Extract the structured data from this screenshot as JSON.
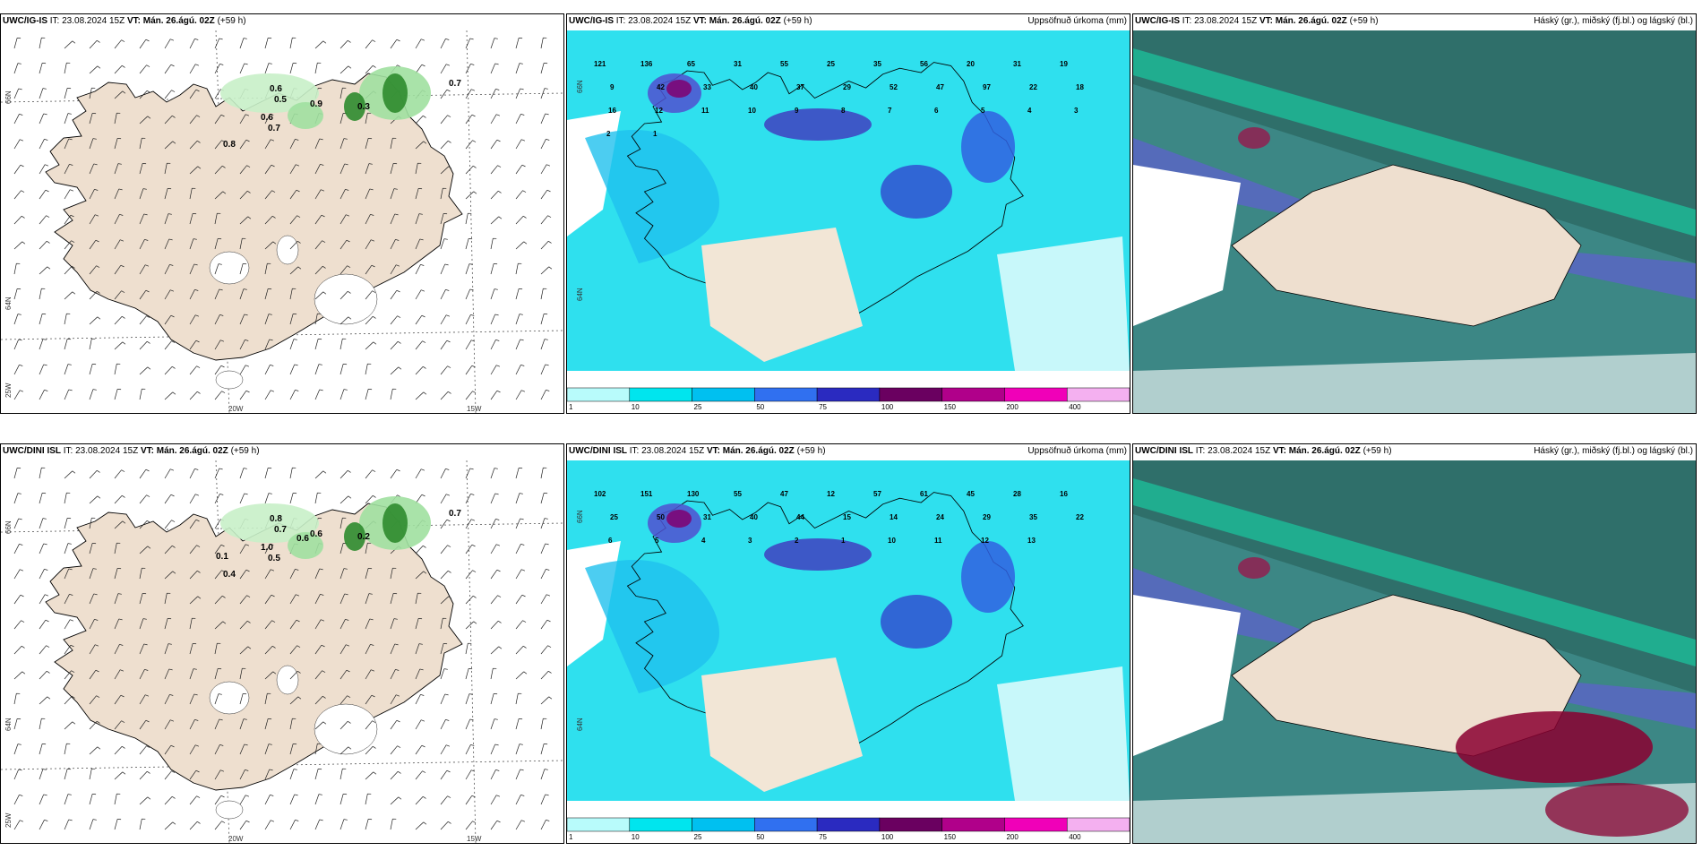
{
  "panels": [
    {
      "model": "UWC/IG-IS",
      "it_label": "IT:",
      "it_value": "23.08.2024 15Z",
      "vt_label": "VT:",
      "vt_value": "Mán. 26.ágú. 02Z",
      "lead": "(+59 h)",
      "right": ""
    },
    {
      "model": "UWC/IG-IS",
      "it_label": "IT:",
      "it_value": "23.08.2024 15Z",
      "vt_label": "VT:",
      "vt_value": "Mán. 26.ágú. 02Z",
      "lead": "(+59 h)",
      "right": "Uppsöfnuð úrkoma (mm)"
    },
    {
      "model": "UWC/IG-IS",
      "it_label": "IT:",
      "it_value": "23.08.2024 15Z",
      "vt_label": "VT:",
      "vt_value": "Mán. 26.ágú. 02Z",
      "lead": "(+59 h)",
      "right": "Háský (gr.), miðský (fj.bl.) og lágský (bl.)"
    },
    {
      "model": "UWC/DINI ISL",
      "it_label": "IT:",
      "it_value": "23.08.2024 15Z",
      "vt_label": "VT:",
      "vt_value": "Mán. 26.ágú. 02Z",
      "lead": "(+59 h)",
      "right": ""
    },
    {
      "model": "UWC/DINI ISL",
      "it_label": "IT:",
      "it_value": "23.08.2024 15Z",
      "vt_label": "VT:",
      "vt_value": "Mán. 26.ágú. 02Z",
      "lead": "(+59 h)",
      "right": "Uppsöfnuð úrkoma (mm)"
    },
    {
      "model": "UWC/DINI ISL",
      "it_label": "IT:",
      "it_value": "23.08.2024 15Z",
      "vt_label": "VT:",
      "vt_value": "Mán. 26.ágú. 02Z",
      "lead": "(+59 h)",
      "right": "Háský (gr.), miðský (fj.bl.) og lágský (bl.)"
    }
  ],
  "axis_labels": {
    "lat66": "66N",
    "lat64": "64N",
    "lon25": "25W",
    "lon20": "20W",
    "lon15": "15W"
  },
  "colorbar": {
    "ticks": [
      "1",
      "10",
      "25",
      "50",
      "75",
      "100",
      "150",
      "200",
      "400"
    ],
    "colors": [
      "#b8fbfb",
      "#00e5ee",
      "#00c0f0",
      "#3070f0",
      "#2a2ac0",
      "#6a0060",
      "#b0008a",
      "#f000b8",
      "#f4b0f0"
    ]
  },
  "precip_labels_top": [
    "121",
    "136",
    "65",
    "31",
    "55",
    "25",
    "35",
    "56",
    "20",
    "31",
    "19",
    "9",
    "42",
    "33",
    "40",
    "37",
    "29",
    "52",
    "47",
    "97",
    "22",
    "18",
    "16",
    "12",
    "11",
    "10",
    "9",
    "8",
    "7",
    "6",
    "5",
    "4",
    "3",
    "2",
    "1"
  ],
  "precip_labels_bottom": [
    "102",
    "151",
    "130",
    "55",
    "47",
    "12",
    "57",
    "61",
    "45",
    "28",
    "16",
    "25",
    "50",
    "31",
    "40",
    "44",
    "15",
    "14",
    "24",
    "29",
    "35",
    "22",
    "6",
    "5",
    "4",
    "3",
    "2",
    "1",
    "10",
    "11",
    "12",
    "13"
  ],
  "wind_values_top": [
    "0.6",
    "0.5",
    "0.9",
    "0.3",
    "0.7",
    "0.6",
    "0.7",
    "0.8"
  ],
  "wind_values_bottom": [
    "0.8",
    "0.7",
    "0.6",
    "0.2",
    "0.7",
    "1.0",
    "0.5",
    "0.4",
    "0.1",
    "0.6"
  ]
}
